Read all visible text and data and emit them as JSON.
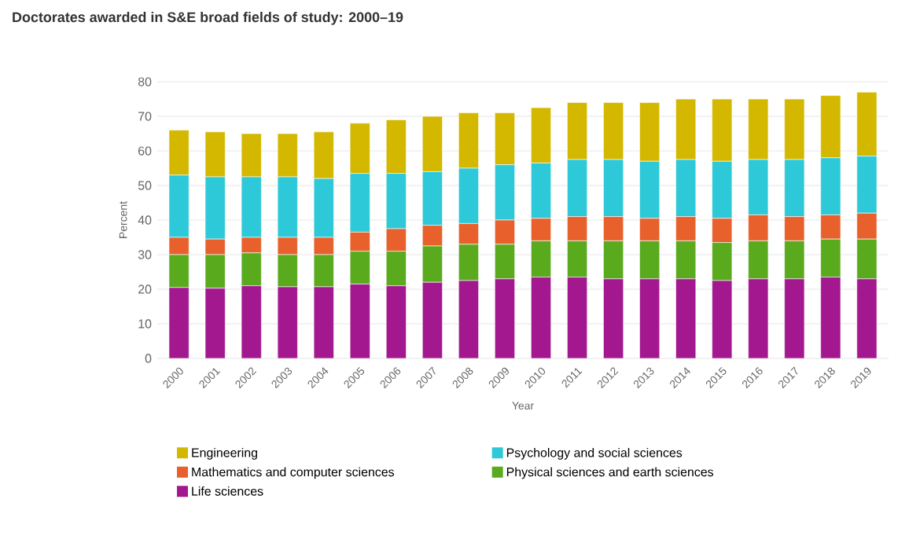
{
  "chart_data": {
    "type": "bar",
    "stacked": true,
    "title": "Doctorates awarded in S&E broad fields of study: 2000–19",
    "xlabel": "Year",
    "ylabel": "Percent",
    "categories": [
      "2000",
      "2001",
      "2002",
      "2003",
      "2004",
      "2005",
      "2006",
      "2007",
      "2008",
      "2009",
      "2010",
      "2011",
      "2012",
      "2013",
      "2014",
      "2015",
      "2016",
      "2017",
      "2018",
      "2019"
    ],
    "series": [
      {
        "name": "Life sciences",
        "color": "#a3188f",
        "values": [
          20.5,
          20.3,
          21,
          20.7,
          20.7,
          21.5,
          21,
          22,
          22.5,
          23,
          23.5,
          23.5,
          23,
          23,
          23,
          22.5,
          23,
          23,
          23.5,
          23
        ]
      },
      {
        "name": "Physical sciences and earth sciences",
        "color": "#5aaa1e",
        "values": [
          9.5,
          9.7,
          9.5,
          9.3,
          9.3,
          9.5,
          10,
          10.5,
          10.5,
          10,
          10.5,
          10.5,
          11,
          11,
          11,
          11,
          11,
          11,
          11,
          11.5
        ]
      },
      {
        "name": "Mathematics and computer sciences",
        "color": "#e8612c",
        "values": [
          5,
          4.5,
          4.5,
          5,
          5,
          5.5,
          6.5,
          6,
          6,
          7,
          6.5,
          7,
          7,
          6.5,
          7,
          7,
          7.5,
          7,
          7,
          7.5
        ]
      },
      {
        "name": "Psychology and social sciences",
        "color": "#2ec9d8",
        "values": [
          18,
          18,
          17.5,
          17.5,
          17,
          17,
          16,
          15.5,
          16,
          16,
          16,
          16.5,
          16.5,
          16.5,
          16.5,
          16.5,
          16,
          16.5,
          16.5,
          16.5
        ]
      },
      {
        "name": "Engineering",
        "color": "#d4b800",
        "values": [
          13,
          13,
          12.5,
          12.5,
          13.5,
          14.5,
          15.5,
          16,
          16,
          15,
          16,
          16.5,
          16.5,
          17,
          17.5,
          18,
          17.5,
          17.5,
          18,
          18.5
        ]
      }
    ],
    "ylim": [
      0,
      80
    ],
    "yticks": [
      0,
      10,
      20,
      30,
      40,
      50,
      60,
      70,
      80
    ],
    "grid": "y",
    "legend": "bottom"
  }
}
